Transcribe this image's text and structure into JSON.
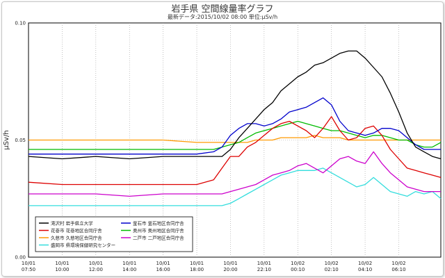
{
  "chart_data": {
    "type": "line",
    "title": "岩手県 空間線量率グラフ",
    "subtitle": "最新データ:2015/10/02 08:00 単位:μSv/h",
    "ylabel": "μSv/h",
    "ylim": [
      0,
      0.1
    ],
    "yticks": [
      "0.00",
      "0.05",
      "0.10"
    ],
    "grid": true,
    "legend_position": "bottom-left",
    "x_tick_labels": [
      [
        "10/01",
        "07:50"
      ],
      [
        "10/01",
        "10:00"
      ],
      [
        "10/01",
        "12:00"
      ],
      [
        "10/01",
        "14:00"
      ],
      [
        "10/01",
        "16:00"
      ],
      [
        "10/01",
        "18:00"
      ],
      [
        "10/01",
        "20:00"
      ],
      [
        "10/01",
        "22:10"
      ],
      [
        "10/02",
        "00:10"
      ],
      [
        "10/02",
        "02:10"
      ],
      [
        "10/02",
        "04:10"
      ],
      [
        "10/02",
        "06:10"
      ]
    ],
    "x_index_range": [
      0,
      24.5
    ],
    "x": [
      0,
      2,
      4,
      6,
      8,
      10,
      11,
      11.5,
      12,
      12.5,
      13,
      13.5,
      14,
      14.5,
      15,
      15.5,
      16,
      16.5,
      17,
      17.5,
      18,
      18.5,
      19,
      19.5,
      20,
      20.5,
      21,
      21.5,
      22,
      22.5,
      23,
      23.5,
      24,
      24.5
    ],
    "series": [
      {
        "name": "滝沢村 岩手県立大学",
        "color": "#000000",
        "values": [
          0.043,
          0.042,
          0.043,
          0.042,
          0.043,
          0.043,
          0.043,
          0.043,
          0.046,
          0.051,
          0.055,
          0.059,
          0.063,
          0.066,
          0.071,
          0.074,
          0.077,
          0.079,
          0.082,
          0.083,
          0.085,
          0.087,
          0.088,
          0.088,
          0.085,
          0.081,
          0.077,
          0.07,
          0.062,
          0.053,
          0.047,
          0.045,
          0.043,
          0.042
        ]
      },
      {
        "name": "釜石市 釜石地区合同庁舎",
        "color": "#0000cc",
        "values": [
          0.044,
          0.044,
          0.044,
          0.044,
          0.044,
          0.044,
          0.045,
          0.047,
          0.052,
          0.055,
          0.057,
          0.057,
          0.056,
          0.057,
          0.059,
          0.062,
          0.063,
          0.064,
          0.066,
          0.068,
          0.065,
          0.058,
          0.054,
          0.053,
          0.052,
          0.053,
          0.055,
          0.055,
          0.054,
          0.051,
          0.048,
          0.046,
          0.046,
          0.046
        ]
      },
      {
        "name": "花巻市 花巻地区合同庁舎",
        "color": "#dd0000",
        "values": [
          0.032,
          0.031,
          0.031,
          0.031,
          0.031,
          0.031,
          0.033,
          0.038,
          0.043,
          0.043,
          0.047,
          0.049,
          0.052,
          0.055,
          0.057,
          0.058,
          0.056,
          0.054,
          0.051,
          0.055,
          0.06,
          0.054,
          0.05,
          0.051,
          0.055,
          0.056,
          0.052,
          0.046,
          0.042,
          0.038,
          0.037,
          0.036,
          0.035,
          0.034
        ]
      },
      {
        "name": "奥州市 奥州地区合同庁舎",
        "color": "#00bb00",
        "values": [
          0.046,
          0.046,
          0.046,
          0.046,
          0.046,
          0.046,
          0.046,
          0.047,
          0.048,
          0.049,
          0.051,
          0.053,
          0.054,
          0.055,
          0.056,
          0.057,
          0.058,
          0.057,
          0.056,
          0.055,
          0.054,
          0.054,
          0.053,
          0.052,
          0.051,
          0.052,
          0.052,
          0.051,
          0.05,
          0.05,
          0.048,
          0.047,
          0.047,
          0.049
        ]
      },
      {
        "name": "久慈市 久慈地区合同庁舎",
        "color": "#ff9900",
        "values": [
          0.05,
          0.05,
          0.05,
          0.05,
          0.05,
          0.049,
          0.049,
          0.049,
          0.049,
          0.049,
          0.049,
          0.05,
          0.05,
          0.05,
          0.051,
          0.051,
          0.051,
          0.051,
          0.052,
          0.051,
          0.051,
          0.051,
          0.05,
          0.05,
          0.05,
          0.05,
          0.05,
          0.05,
          0.05,
          0.05,
          0.05,
          0.05,
          0.05,
          0.05
        ]
      },
      {
        "name": "二戸市 二戸地区合同庁舎",
        "color": "#cc00cc",
        "values": [
          0.027,
          0.027,
          0.027,
          0.026,
          0.027,
          0.027,
          0.027,
          0.027,
          0.028,
          0.029,
          0.03,
          0.031,
          0.033,
          0.035,
          0.036,
          0.037,
          0.039,
          0.04,
          0.038,
          0.036,
          0.039,
          0.042,
          0.043,
          0.041,
          0.04,
          0.045,
          0.04,
          0.036,
          0.033,
          0.03,
          0.029,
          0.028,
          0.028,
          0.028
        ]
      },
      {
        "name": "盛岡市 県環境保健研究センター",
        "color": "#33dddd",
        "values": [
          0.022,
          0.022,
          0.022,
          0.022,
          0.022,
          0.022,
          0.022,
          0.022,
          0.023,
          0.025,
          0.027,
          0.029,
          0.031,
          0.033,
          0.035,
          0.036,
          0.037,
          0.037,
          0.037,
          0.038,
          0.036,
          0.034,
          0.032,
          0.03,
          0.031,
          0.034,
          0.031,
          0.028,
          0.027,
          0.026,
          0.028,
          0.027,
          0.028,
          0.025
        ]
      }
    ]
  }
}
